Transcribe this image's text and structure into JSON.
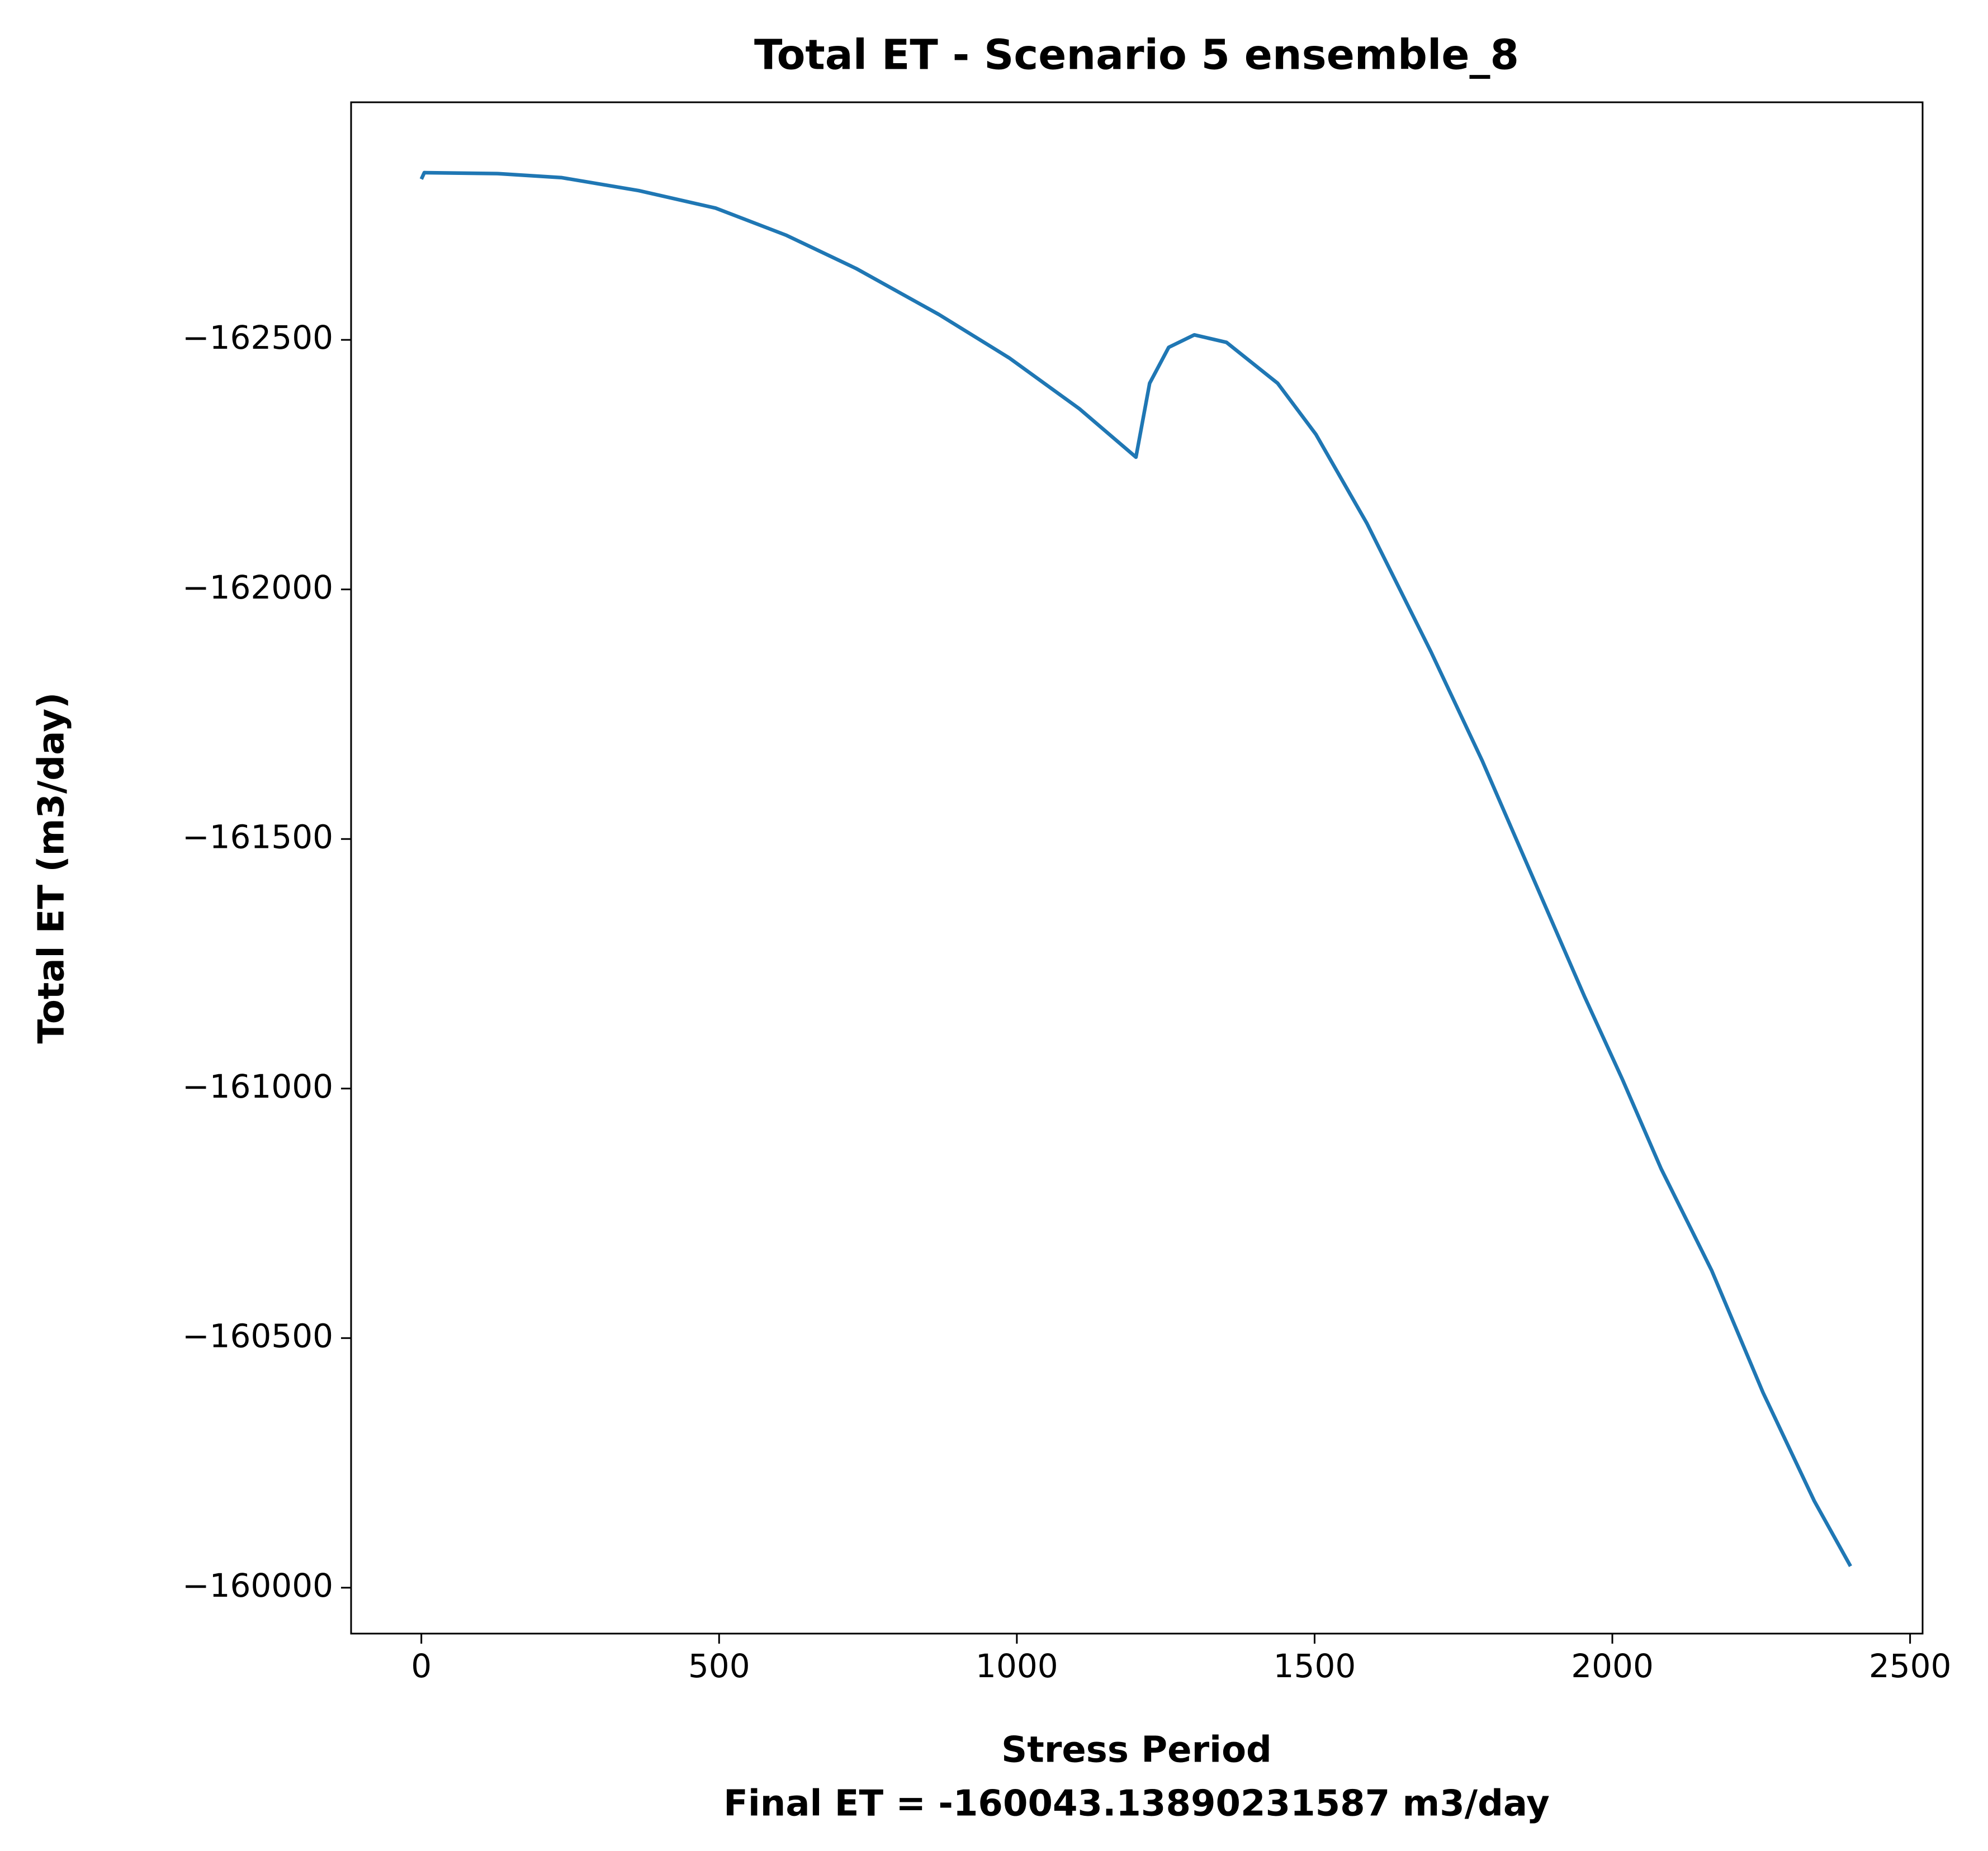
{
  "chart_data": {
    "type": "line",
    "title": "Total ET - Scenario 5 ensemble_8",
    "x_label": "Stress Period",
    "footnote": "Final ET = -160043.13890231587 m3/day",
    "y_label": "Total ET (m3/day)",
    "x": [
      0,
      5,
      130,
      236,
      365,
      494,
      612,
      730,
      869,
      987,
      1105,
      1200,
      1223,
      1255,
      1298,
      1352,
      1438,
      1502,
      1588,
      1695,
      1781,
      1888,
      1953,
      2017,
      2082,
      2167,
      2253,
      2339,
      2400
    ],
    "series": [
      {
        "name": "Total ET",
        "color": "#1f77b4",
        "values": [
          -162822,
          -162835,
          -162833,
          -162825,
          -162799,
          -162764,
          -162710,
          -162643,
          -162551,
          -162464,
          -162362,
          -162265,
          -162413,
          -162485,
          -162510,
          -162495,
          -162413,
          -162311,
          -162132,
          -161876,
          -161658,
          -161364,
          -161185,
          -161018,
          -160839,
          -160635,
          -160391,
          -160174,
          -160043
        ]
      }
    ],
    "xlim": [
      -118,
      2521
    ],
    "xticks": [
      0,
      500,
      1000,
      1500,
      2000,
      2500
    ],
    "ylim": [
      -159908,
      -162976
    ],
    "yticks": [
      {
        "value": -162500,
        "label": "−162500"
      },
      {
        "value": -162000,
        "label": "−162000"
      },
      {
        "value": -161500,
        "label": "−161500"
      },
      {
        "value": -161000,
        "label": "−161000"
      },
      {
        "value": -160500,
        "label": "−160500"
      },
      {
        "value": -160000,
        "label": "−160000"
      }
    ],
    "grid": false
  }
}
